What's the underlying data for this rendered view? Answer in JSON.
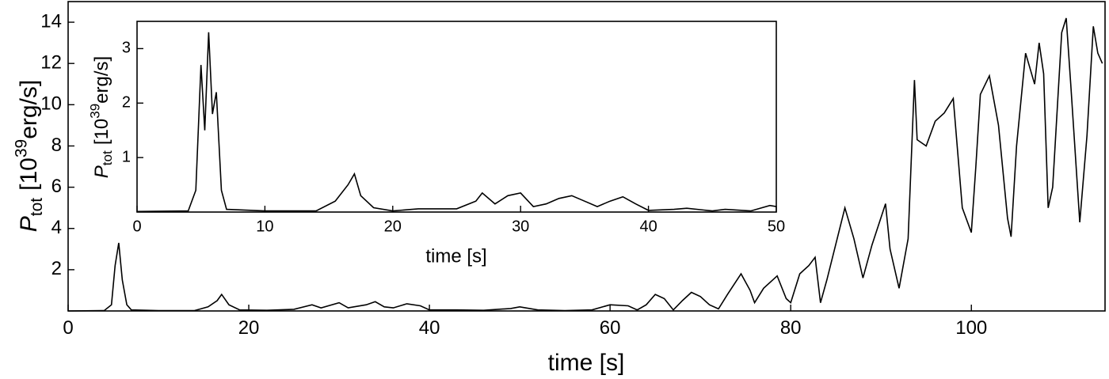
{
  "chart_data": [
    {
      "type": "line",
      "color": "#000000",
      "xlabel": "time [s]",
      "ylabel": {
        "symbol": "P",
        "subscript": "tot",
        "text": "[10",
        "superscript": "39",
        "unit": "erg/s]"
      },
      "xlim": [
        0,
        114.8
      ],
      "ylim": [
        0,
        15
      ],
      "xticks": [
        0,
        20,
        40,
        60,
        80,
        100
      ],
      "yticks": [
        2,
        4,
        6,
        8,
        10,
        12,
        14
      ],
      "x": [
        0,
        4,
        4.8,
        5.2,
        5.6,
        6,
        6.5,
        7,
        10,
        14,
        15.5,
        16.5,
        17,
        17.8,
        19,
        22,
        25,
        27,
        28,
        30,
        31,
        33,
        34,
        35,
        36,
        37.5,
        39,
        40,
        43,
        46,
        49,
        50,
        52,
        55,
        58,
        60,
        62,
        63,
        64,
        65,
        66,
        67,
        68,
        69,
        70,
        71,
        72,
        73,
        74.5,
        75.5,
        76,
        77,
        78.5,
        79.5,
        80,
        81,
        82,
        82.7,
        83.3,
        84,
        86,
        87,
        88,
        89,
        90.5,
        91,
        92,
        93,
        93.7,
        94,
        95,
        96,
        97,
        98,
        99,
        100,
        100.5,
        101,
        102,
        103,
        104,
        104.4,
        105,
        106,
        107,
        107.5,
        108,
        108.5,
        109,
        110,
        110.5,
        111,
        112,
        112.8,
        113.5,
        114,
        114.5
      ],
      "values": [
        0,
        0.02,
        0.3,
        2.2,
        3.3,
        1.5,
        0.3,
        0.05,
        0.02,
        0.02,
        0.2,
        0.5,
        0.8,
        0.3,
        0.05,
        0.03,
        0.08,
        0.3,
        0.15,
        0.4,
        0.15,
        0.3,
        0.45,
        0.2,
        0.15,
        0.35,
        0.25,
        0.05,
        0.05,
        0.03,
        0.12,
        0.2,
        0.05,
        0.02,
        0.05,
        0.3,
        0.25,
        0.05,
        0.3,
        0.8,
        0.6,
        0.05,
        0.5,
        0.9,
        0.7,
        0.3,
        0.1,
        0.8,
        1.8,
        1.0,
        0.4,
        1.1,
        1.7,
        0.6,
        0.4,
        1.8,
        2.2,
        2.6,
        0.4,
        1.5,
        5.0,
        3.5,
        1.6,
        3.2,
        5.2,
        3.0,
        1.1,
        3.5,
        11.2,
        8.3,
        8.0,
        9.2,
        9.6,
        10.3,
        5.0,
        3.8,
        7.0,
        10.5,
        11.4,
        9.0,
        4.5,
        3.6,
        8.0,
        12.5,
        11.0,
        13.0,
        11.5,
        5.0,
        6.0,
        13.5,
        14.2,
        11.0,
        4.3,
        8.5,
        13.8,
        12.5,
        12.0
      ]
    },
    {
      "type": "line",
      "color": "#000000",
      "xlabel": "time [s]",
      "ylabel": {
        "symbol": "P",
        "subscript": "tot",
        "text": "[10",
        "superscript": "39",
        "unit": "erg/s]"
      },
      "xlim": [
        0,
        50
      ],
      "ylim": [
        0,
        3.5
      ],
      "xticks": [
        0,
        10,
        20,
        30,
        40,
        50
      ],
      "yticks": [
        1,
        2,
        3
      ],
      "x": [
        0,
        4,
        4.6,
        5,
        5.3,
        5.6,
        5.9,
        6.2,
        6.6,
        7,
        10,
        14,
        15.5,
        16.5,
        17,
        17.5,
        18.5,
        20,
        22,
        25,
        26.5,
        27,
        28,
        29,
        30,
        31,
        32,
        33,
        34,
        35,
        36,
        37,
        38,
        39,
        40,
        42,
        43,
        45,
        46,
        48,
        49.5,
        50
      ],
      "values": [
        0.01,
        0.02,
        0.4,
        2.7,
        1.5,
        3.3,
        1.8,
        2.2,
        0.4,
        0.05,
        0.02,
        0.02,
        0.2,
        0.5,
        0.7,
        0.3,
        0.08,
        0.02,
        0.06,
        0.06,
        0.2,
        0.35,
        0.15,
        0.3,
        0.35,
        0.1,
        0.15,
        0.25,
        0.3,
        0.2,
        0.1,
        0.2,
        0.28,
        0.15,
        0.03,
        0.05,
        0.07,
        0.02,
        0.05,
        0.02,
        0.12,
        0.1
      ]
    }
  ]
}
